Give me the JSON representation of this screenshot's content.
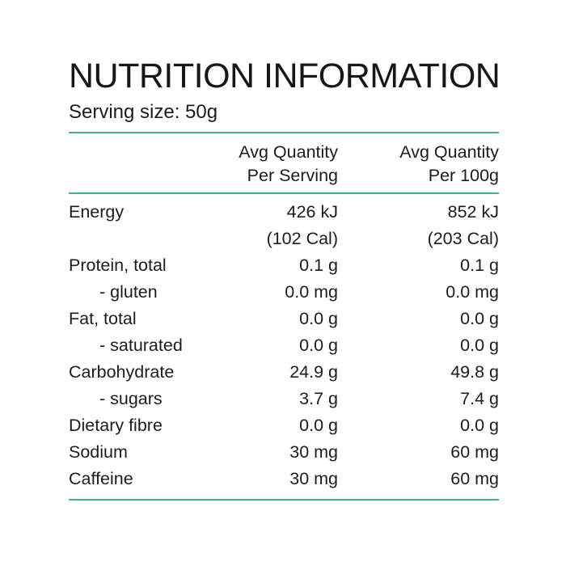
{
  "panel": {
    "title": "NUTRITION INFORMATION",
    "serving_size": "Serving size: 50g"
  },
  "table": {
    "header": {
      "per_serving_line1": "Avg Quantity",
      "per_serving_line2": "Per Serving",
      "per_100g_line1": "Avg Quantity",
      "per_100g_line2": "Per 100g"
    },
    "rows": [
      {
        "label": "Energy",
        "per_serving": "426 kJ",
        "per_100g": "852 kJ",
        "indent": false
      },
      {
        "label": "",
        "per_serving": "(102 Cal)",
        "per_100g": "(203 Cal)",
        "indent": false
      },
      {
        "label": "Protein, total",
        "per_serving": "0.1 g",
        "per_100g": "0.1 g",
        "indent": false
      },
      {
        "label": "- gluten",
        "per_serving": "0.0 mg",
        "per_100g": "0.0 mg",
        "indent": true
      },
      {
        "label": "Fat, total",
        "per_serving": "0.0 g",
        "per_100g": "0.0 g",
        "indent": false
      },
      {
        "label": "- saturated",
        "per_serving": "0.0 g",
        "per_100g": "0.0 g",
        "indent": true
      },
      {
        "label": "Carbohydrate",
        "per_serving": "24.9 g",
        "per_100g": "49.8 g",
        "indent": false
      },
      {
        "label": "- sugars",
        "per_serving": "3.7 g",
        "per_100g": "7.4 g",
        "indent": true
      },
      {
        "label": "Dietary fibre",
        "per_serving": "0.0 g",
        "per_100g": "0.0 g",
        "indent": false
      },
      {
        "label": "Sodium",
        "per_serving": "30 mg",
        "per_100g": "60 mg",
        "indent": false
      },
      {
        "label": "Caffeine",
        "per_serving": "30 mg",
        "per_100g": "60 mg",
        "indent": false
      }
    ]
  },
  "colors": {
    "rule": "#3cb596",
    "text": "#1c1c1c",
    "background": "#ffffff"
  }
}
